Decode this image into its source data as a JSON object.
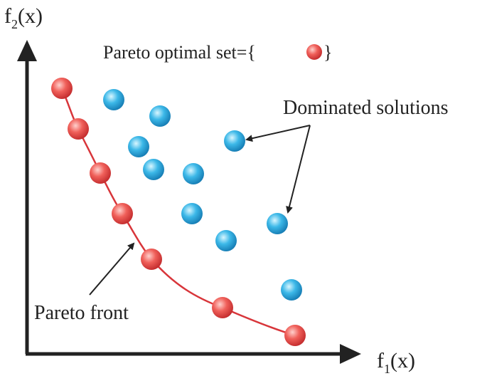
{
  "axes": {
    "y_label": {
      "base": "f",
      "sub": "2",
      "arg": "(x)"
    },
    "x_label": {
      "base": "f",
      "sub": "1",
      "arg": "(x)"
    }
  },
  "legend": {
    "prefix": "Pareto optimal set={",
    "suffix": "}"
  },
  "annotations": {
    "dominated": "Dominated solutions",
    "front": "Pareto front"
  }
}
